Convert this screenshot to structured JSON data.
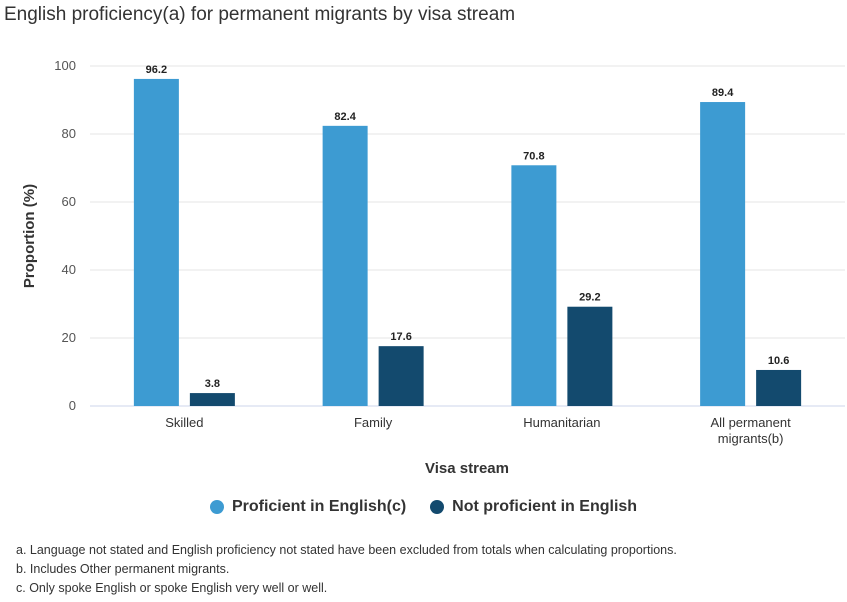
{
  "chart_data": {
    "type": "bar",
    "title": "English proficiency(a) for permanent migrants by visa stream",
    "xlabel": "Visa stream",
    "ylabel": "Proportion (%)",
    "ylim": [
      0,
      100
    ],
    "yticks": [
      0,
      20,
      40,
      60,
      80,
      100
    ],
    "categories": [
      [
        "Skilled"
      ],
      [
        "Family"
      ],
      [
        "Humanitarian"
      ],
      [
        "All permanent",
        "migrants(b)"
      ]
    ],
    "series": [
      {
        "name": "Proficient in English(c)",
        "color": "#3d9bd2",
        "values": [
          96.2,
          82.4,
          70.8,
          89.4
        ],
        "labels": [
          "96.2",
          "82.4",
          "70.8",
          "89.4"
        ]
      },
      {
        "name": "Not proficient in English",
        "color": "#134a6e",
        "values": [
          3.8,
          17.6,
          29.2,
          10.6
        ],
        "labels": [
          "3.8",
          "17.6",
          "29.2",
          "10.6"
        ]
      }
    ],
    "grid": true,
    "legend_position": "bottom"
  },
  "footnotes": [
    "a. Language not stated and English proficiency not stated have been excluded from totals when calculating proportions.",
    "b. Includes Other permanent migrants.",
    "c. Only spoke English or spoke English very well or well."
  ]
}
